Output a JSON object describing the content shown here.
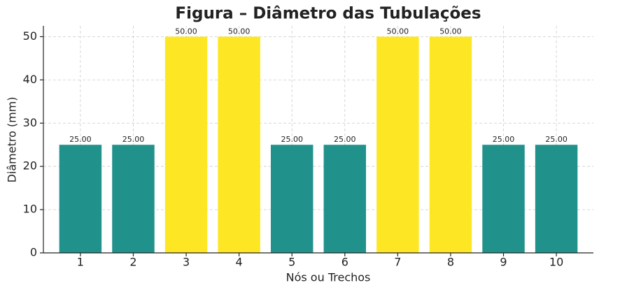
{
  "chart_data": {
    "type": "bar",
    "title": "Figura – Diâmetro das Tubulações",
    "x_label": "Nós ou Trechos",
    "y_label": "Diâmetro (mm)",
    "categories": [
      "1",
      "2",
      "3",
      "4",
      "5",
      "6",
      "7",
      "8",
      "9",
      "10"
    ],
    "values": [
      25,
      25,
      50,
      50,
      25,
      25,
      50,
      50,
      25,
      25
    ],
    "value_labels": [
      "25.00",
      "25.00",
      "50.00",
      "50.00",
      "25.00",
      "25.00",
      "50.00",
      "50.00",
      "25.00",
      "25.00"
    ],
    "colors": [
      "#21918c",
      "#21918c",
      "#fde725",
      "#fde725",
      "#21918c",
      "#21918c",
      "#fde725",
      "#fde725",
      "#21918c",
      "#21918c"
    ],
    "ylim": [
      0,
      52.5
    ],
    "yticks": [
      0,
      10,
      20,
      30,
      40,
      50
    ],
    "grid": true
  }
}
